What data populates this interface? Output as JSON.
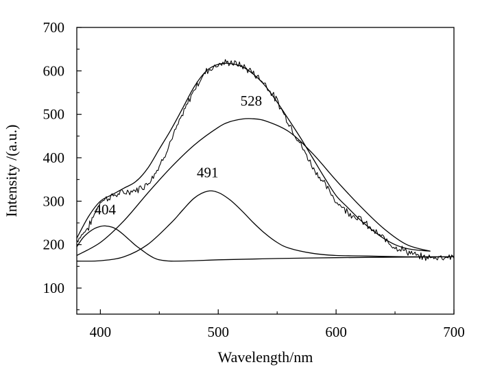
{
  "chart_data": {
    "type": "line",
    "title": "",
    "xlabel": "Wavelength/nm",
    "ylabel": "Intensity /(a.u.)",
    "xlim": [
      380,
      700
    ],
    "ylim": [
      40,
      700
    ],
    "x_ticks": [
      400,
      500,
      600,
      700
    ],
    "y_ticks": [
      100,
      200,
      300,
      400,
      500,
      600,
      700
    ],
    "grid": false,
    "legend": "none",
    "line_color": "#000000",
    "series": [
      {
        "id": "measured",
        "x": [
          380,
          390,
          400,
          410,
          420,
          430,
          440,
          450,
          460,
          470,
          480,
          490,
          500,
          510,
          520,
          530,
          540,
          550,
          560,
          570,
          580,
          590,
          600,
          610,
          620,
          630,
          640,
          650,
          660,
          670,
          680,
          690,
          700
        ],
        "y": [
          210,
          240,
          300,
          312,
          320,
          325,
          340,
          380,
          440,
          500,
          560,
          600,
          615,
          620,
          612,
          595,
          570,
          530,
          480,
          430,
          380,
          340,
          300,
          275,
          260,
          235,
          215,
          195,
          185,
          172,
          170,
          172,
          172
        ]
      },
      {
        "id": "fit-total",
        "x": [
          380,
          390,
          400,
          410,
          420,
          430,
          440,
          450,
          460,
          470,
          480,
          490,
          500,
          510,
          520,
          530,
          540,
          550,
          560,
          570,
          580,
          590,
          600,
          610,
          620,
          630,
          640,
          650,
          660,
          670,
          680
        ],
        "y": [
          215,
          265,
          300,
          315,
          330,
          345,
          375,
          420,
          465,
          515,
          565,
          600,
          615,
          617,
          610,
          592,
          565,
          528,
          487,
          445,
          400,
          355,
          313,
          285,
          258,
          235,
          215,
          200,
          191,
          187,
          185
        ]
      },
      {
        "id": "peak-404",
        "label": "404",
        "label_at": [
          404,
          270
        ],
        "x": [
          380,
          385,
          390,
          395,
          400,
          404,
          410,
          415,
          420,
          425,
          430,
          435,
          440,
          445,
          450,
          460,
          480,
          500,
          550,
          600,
          650,
          700
        ],
        "y": [
          195,
          215,
          228,
          237,
          242,
          243,
          240,
          233,
          222,
          210,
          198,
          188,
          178,
          170,
          165,
          162,
          163,
          165,
          168,
          170,
          171,
          172
        ]
      },
      {
        "id": "peak-491",
        "label": "491",
        "label_at": [
          491,
          355
        ],
        "x": [
          380,
          400,
          420,
          440,
          460,
          470,
          480,
          491,
          500,
          510,
          520,
          530,
          540,
          550,
          560,
          580,
          600,
          620,
          640,
          660,
          680,
          700
        ],
        "y": [
          162,
          163,
          172,
          200,
          250,
          280,
          308,
          323,
          320,
          303,
          278,
          250,
          225,
          205,
          192,
          180,
          175,
          174,
          173,
          172,
          172,
          172
        ]
      },
      {
        "id": "peak-528",
        "label": "528",
        "label_at": [
          528,
          520
        ],
        "x": [
          380,
          400,
          420,
          440,
          460,
          480,
          500,
          510,
          520,
          528,
          540,
          560,
          580,
          600,
          620,
          640,
          660,
          680
        ],
        "y": [
          175,
          205,
          255,
          318,
          378,
          430,
          470,
          483,
          489,
          490,
          485,
          460,
          410,
          348,
          290,
          238,
          200,
          185
        ]
      }
    ]
  }
}
